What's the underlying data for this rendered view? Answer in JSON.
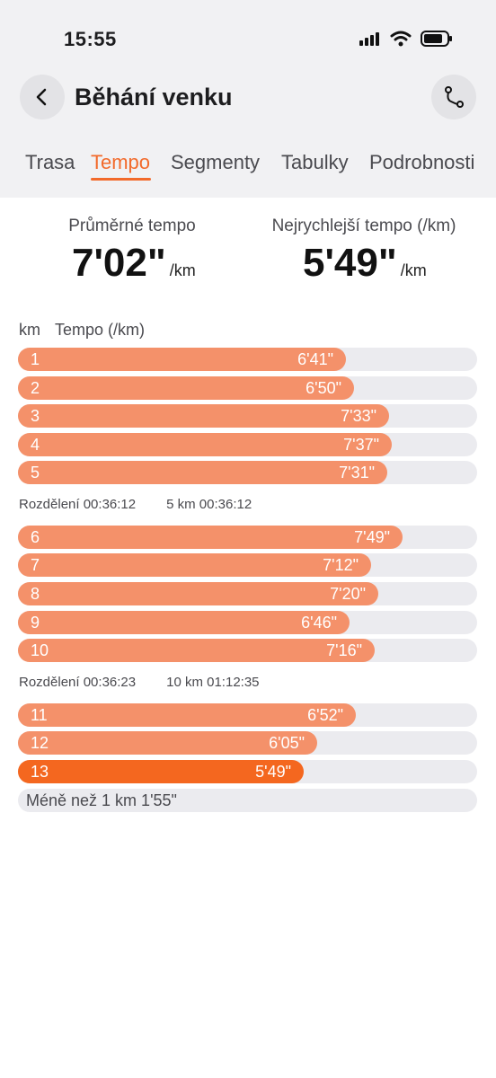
{
  "status_bar": {
    "time": "15:55"
  },
  "header": {
    "title": "Běhání venku"
  },
  "tabs": [
    {
      "label": "Trasa",
      "active": false
    },
    {
      "label": "Tempo",
      "active": true
    },
    {
      "label": "Segmenty",
      "active": false
    },
    {
      "label": "Tabulky",
      "active": false
    },
    {
      "label": "Podrobnosti",
      "active": false
    }
  ],
  "summary": {
    "avg_label": "Průměrné tempo",
    "avg_value": "7'02\"",
    "avg_unit": "/km",
    "best_label": "Nejrychlejší tempo (/km)",
    "best_value": "5'49\"",
    "best_unit": "/km"
  },
  "table_header": {
    "km": "km",
    "pace": "Tempo (/km)"
  },
  "colors": {
    "accent": "#f26a2b",
    "bar": "#f4916a",
    "fastest_bar": "#f4671f",
    "track": "#ebebef"
  },
  "splits": [
    {
      "km": "1",
      "pace": "6'41\"",
      "fill": 0.715
    },
    {
      "km": "2",
      "pace": "6'50\"",
      "fill": 0.731
    },
    {
      "km": "3",
      "pace": "7'33\"",
      "fill": 0.809
    },
    {
      "km": "4",
      "pace": "7'37\"",
      "fill": 0.815
    },
    {
      "km": "5",
      "pace": "7'31\"",
      "fill": 0.805
    },
    {
      "km": "6",
      "pace": "7'49\"",
      "fill": 0.838
    },
    {
      "km": "7",
      "pace": "7'12\"",
      "fill": 0.77
    },
    {
      "km": "8",
      "pace": "7'20\"",
      "fill": 0.785
    },
    {
      "km": "9",
      "pace": "6'46\"",
      "fill": 0.723
    },
    {
      "km": "10",
      "pace": "7'16\"",
      "fill": 0.777
    },
    {
      "km": "11",
      "pace": "6'52\"",
      "fill": 0.735
    },
    {
      "km": "12",
      "pace": "6'05\"",
      "fill": 0.652
    },
    {
      "km": "13",
      "pace": "5'49\"",
      "fill": 0.623,
      "fastest": true
    }
  ],
  "split_summaries": [
    {
      "label": "Rozdělení 00:36:12",
      "total": "5 km 00:36:12"
    },
    {
      "label": "Rozdělení 00:36:23",
      "total": "10 km 01:12:35"
    }
  ],
  "remainder": {
    "label": "Méně než 1 km 1'55\""
  }
}
